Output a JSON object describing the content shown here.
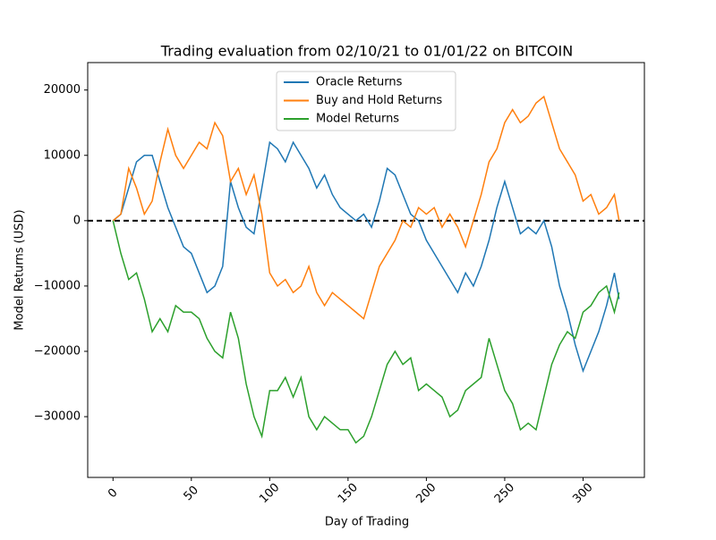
{
  "chart_data": {
    "type": "line",
    "title": "Trading evaluation from 02/10/21 to 01/01/22 on BITCOIN",
    "x_label": "Day of Trading",
    "y_label": "Model Returns (USD)",
    "x": [
      0,
      5,
      10,
      15,
      20,
      25,
      30,
      35,
      40,
      45,
      50,
      55,
      60,
      65,
      70,
      75,
      80,
      85,
      90,
      95,
      100,
      105,
      110,
      115,
      120,
      125,
      130,
      135,
      140,
      145,
      150,
      155,
      160,
      165,
      170,
      175,
      180,
      185,
      190,
      195,
      200,
      205,
      210,
      215,
      220,
      225,
      230,
      235,
      240,
      245,
      250,
      255,
      260,
      265,
      270,
      275,
      280,
      285,
      290,
      295,
      300,
      305,
      310,
      315,
      320,
      323
    ],
    "series": [
      {
        "name": "Oracle Returns",
        "color": "#1f77b4",
        "values": [
          0,
          1000,
          5000,
          9000,
          10000,
          10000,
          6000,
          2000,
          -1000,
          -4000,
          -5000,
          -8000,
          -11000,
          -10000,
          -7000,
          6000,
          2000,
          -1000,
          -2000,
          5000,
          12000,
          11000,
          9000,
          12000,
          10000,
          8000,
          5000,
          7000,
          4000,
          2000,
          1000,
          0,
          1000,
          -1000,
          3000,
          8000,
          7000,
          4000,
          1000,
          0,
          -3000,
          -5000,
          -7000,
          -9000,
          -11000,
          -8000,
          -10000,
          -7000,
          -3000,
          2000,
          6000,
          2000,
          -2000,
          -1000,
          -2000,
          0,
          -4000,
          -10000,
          -14000,
          -19000,
          -23000,
          -20000,
          -17000,
          -13000,
          -8000,
          -12000
        ]
      },
      {
        "name": "Buy and Hold Returns",
        "color": "#ff7f0e",
        "values": [
          0,
          1000,
          8000,
          5000,
          1000,
          3000,
          9000,
          14000,
          10000,
          8000,
          10000,
          12000,
          11000,
          15000,
          13000,
          6000,
          8000,
          4000,
          7000,
          1000,
          -8000,
          -10000,
          -9000,
          -11000,
          -10000,
          -7000,
          -11000,
          -13000,
          -11000,
          -12000,
          -13000,
          -14000,
          -15000,
          -11000,
          -7000,
          -5000,
          -3000,
          0,
          -1000,
          2000,
          1000,
          2000,
          -1000,
          1000,
          -1000,
          -4000,
          0,
          4000,
          9000,
          11000,
          15000,
          17000,
          15000,
          16000,
          18000,
          19000,
          15000,
          11000,
          9000,
          7000,
          3000,
          4000,
          1000,
          2000,
          4000,
          0
        ]
      },
      {
        "name": "Model Returns",
        "color": "#2ca02c",
        "values": [
          0,
          -5000,
          -9000,
          -8000,
          -12000,
          -17000,
          -15000,
          -17000,
          -13000,
          -14000,
          -14000,
          -15000,
          -18000,
          -20000,
          -21000,
          -14000,
          -18000,
          -25000,
          -30000,
          -33000,
          -26000,
          -26000,
          -24000,
          -27000,
          -24000,
          -30000,
          -32000,
          -30000,
          -31000,
          -32000,
          -32000,
          -34000,
          -33000,
          -30000,
          -26000,
          -22000,
          -20000,
          -22000,
          -21000,
          -26000,
          -25000,
          -26000,
          -27000,
          -30000,
          -29000,
          -26000,
          -25000,
          -24000,
          -18000,
          -22000,
          -26000,
          -28000,
          -32000,
          -31000,
          -32000,
          -27000,
          -22000,
          -19000,
          -17000,
          -18000,
          -14000,
          -13000,
          -11000,
          -10000,
          -14000,
          -11000
        ]
      }
    ],
    "reference_line": {
      "y": 0,
      "color": "#000000"
    },
    "xlim": [
      -16.15,
      339.15
    ],
    "xticks": [
      0,
      50,
      100,
      150,
      200,
      250,
      300
    ],
    "ylim": [
      -39300,
      24200
    ],
    "yticks": [
      {
        "value": -30000,
        "label": "−30000"
      },
      {
        "value": -20000,
        "label": "−20000"
      },
      {
        "value": -10000,
        "label": "−10000"
      },
      0,
      10000,
      20000
    ],
    "legend": "upper center"
  }
}
